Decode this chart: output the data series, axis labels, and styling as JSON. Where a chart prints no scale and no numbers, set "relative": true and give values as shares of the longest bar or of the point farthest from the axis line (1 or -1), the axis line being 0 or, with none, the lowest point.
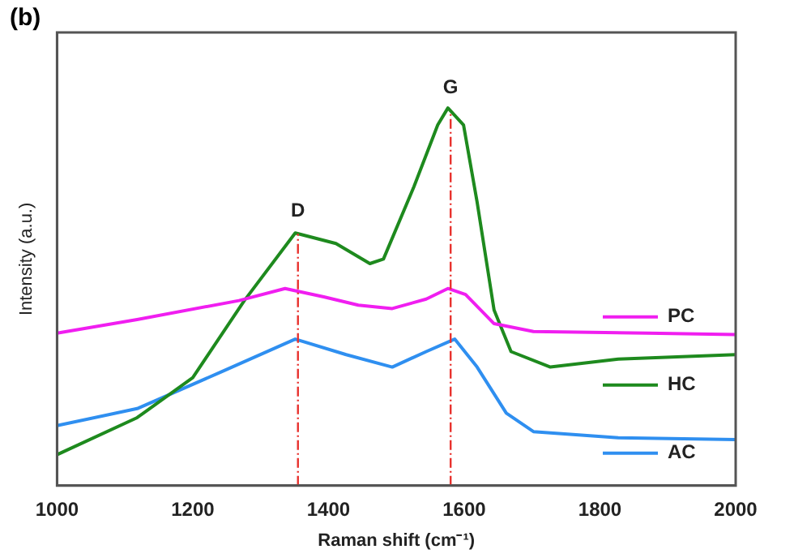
{
  "chart_data": {
    "type": "line",
    "title": "(b)",
    "xlabel": "Raman shift (cm⁻¹)",
    "ylabel": "Intensity (a.u.)",
    "relative": true,
    "xlim": [
      1000,
      2000
    ],
    "xticks": [
      1000,
      1200,
      1400,
      1600,
      1800,
      2000
    ],
    "grid": false,
    "legend": "bottom right",
    "marker": "none",
    "ref_lines": [
      {
        "axis": "x",
        "value": 1355,
        "label": "D",
        "color": "#e8322e",
        "line_style": "dashed"
      },
      {
        "axis": "x",
        "value": 1580,
        "label": "G",
        "color": "#e8322e",
        "line_style": "dashed"
      }
    ],
    "series": [
      {
        "name": "PC",
        "color": "#f01ef0",
        "x": [
          1000,
          1118,
          1268,
          1336,
          1393,
          1444,
          1494,
          1544,
          1576,
          1602,
          1644,
          1702,
          1870,
          2000
        ],
        "values": [
          0.404,
          0.44,
          0.49,
          0.522,
          0.5,
          0.478,
          0.469,
          0.494,
          0.522,
          0.506,
          0.429,
          0.408,
          0.404,
          0.4
        ]
      },
      {
        "name": "HC",
        "color": "#1e8a1e",
        "x": [
          1000,
          1118,
          1200,
          1276,
          1351,
          1411,
          1461,
          1481,
          1526,
          1561,
          1576,
          1599,
          1619,
          1644,
          1669,
          1727,
          1827,
          2000
        ],
        "values": [
          0.082,
          0.18,
          0.286,
          0.49,
          0.669,
          0.641,
          0.588,
          0.6,
          0.792,
          0.955,
          1.0,
          0.955,
          0.751,
          0.465,
          0.355,
          0.314,
          0.335,
          0.347
        ]
      },
      {
        "name": "AC",
        "color": "#2f8ff0",
        "x": [
          1000,
          1118,
          1243,
          1351,
          1426,
          1494,
          1544,
          1586,
          1619,
          1662,
          1702,
          1827,
          2000
        ],
        "values": [
          0.159,
          0.204,
          0.302,
          0.388,
          0.347,
          0.314,
          0.355,
          0.388,
          0.314,
          0.192,
          0.143,
          0.127,
          0.122
        ]
      }
    ]
  }
}
